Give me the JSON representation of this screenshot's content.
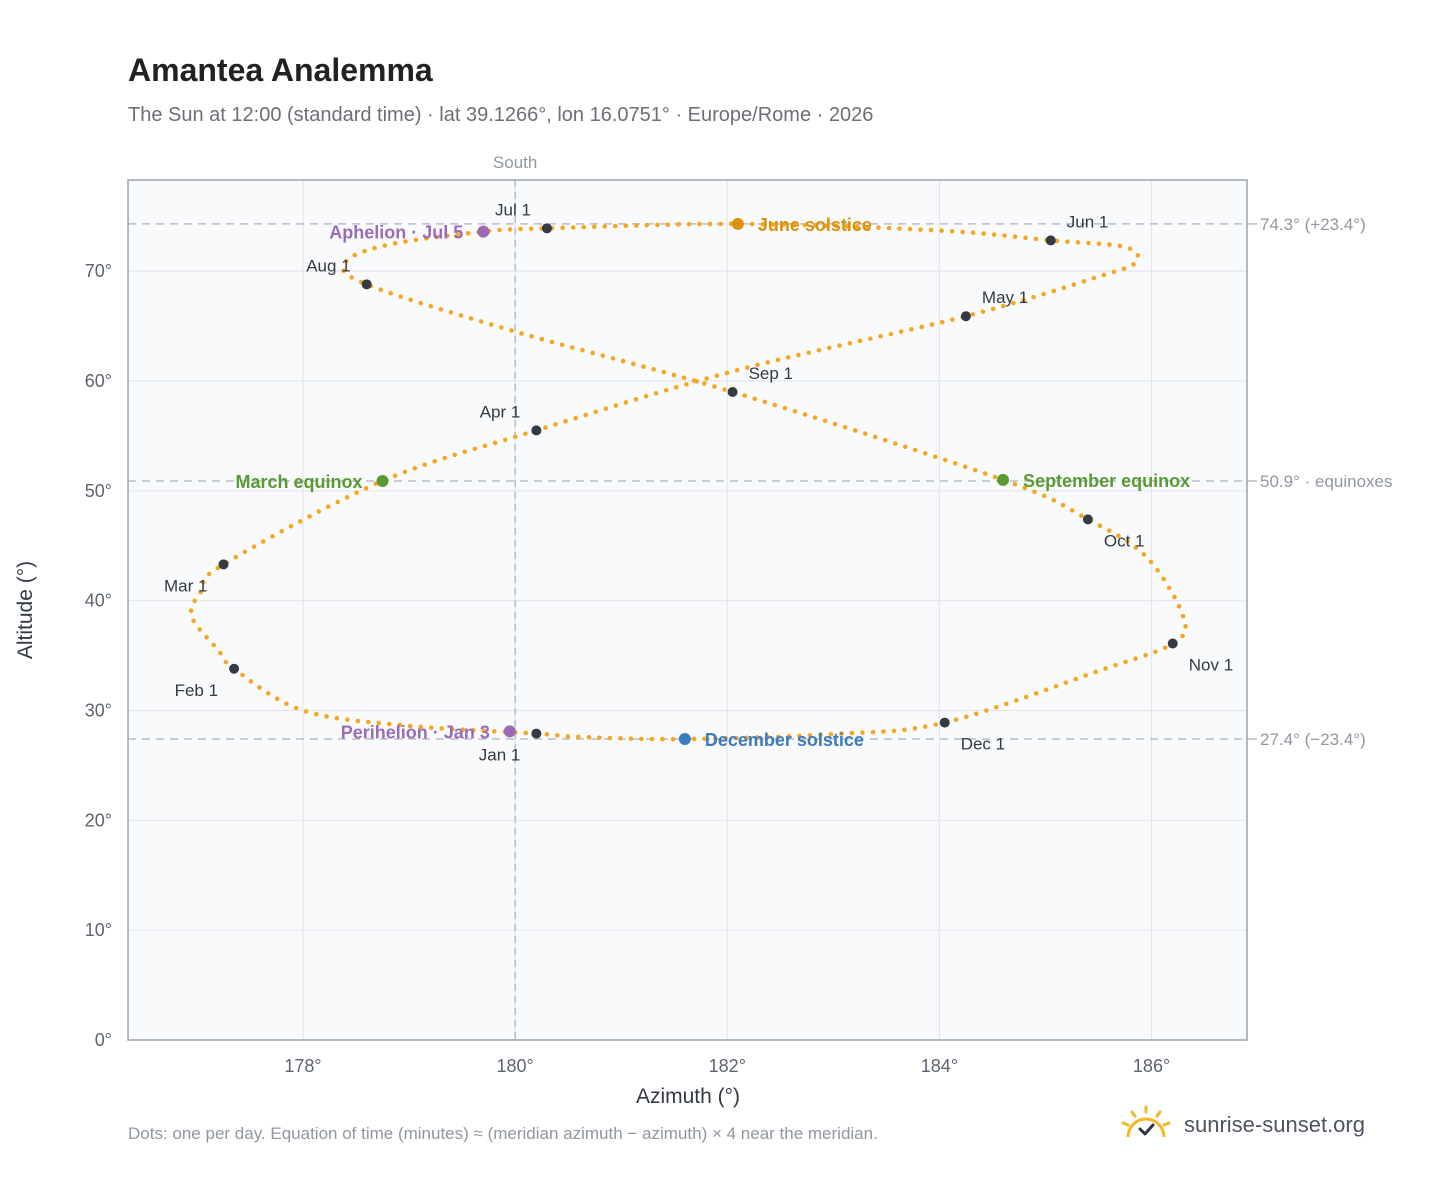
{
  "title": "Amantea Analemma",
  "subtitle": "The Sun at 12:00 (standard time) · lat 39.1266°, lon 16.0751° · Europe/Rome · 2026",
  "footnote": "Dots: one per day. Equation of time (minutes) ≈ (meridian azimuth − azimuth) × 4 near the meridian.",
  "brand": {
    "name": "sunrise-sunset.org",
    "icon": "sun-logo-icon"
  },
  "colors": {
    "path": "#f5a623",
    "month": "#353b45",
    "june": "#d9920c",
    "december": "#3d7bbf",
    "equinox": "#5a9a32",
    "apsis": "#9b6bb8",
    "grid": "#e3e7ec",
    "ref": "#b8bfc8",
    "frame": "#9aa3ae",
    "plot_bg": "#f9fafc"
  },
  "chart_data": {
    "type": "scatter",
    "xlabel": "Azimuth (°)",
    "ylabel": "Altitude (°)",
    "xlim": [
      176.35,
      186.9
    ],
    "ylim": [
      0,
      78.3
    ],
    "x_ticks": [
      178,
      180,
      182,
      184,
      186
    ],
    "x_tick_labels": [
      "178°",
      "180°",
      "182°",
      "184°",
      "186°"
    ],
    "y_ticks": [
      0,
      10,
      20,
      30,
      40,
      50,
      60,
      70
    ],
    "y_tick_labels": [
      "0°",
      "10°",
      "20°",
      "30°",
      "40°",
      "50°",
      "60°",
      "70°"
    ],
    "grid": true,
    "meridian": {
      "azimuth": 180,
      "label": "South"
    },
    "reference_lines": [
      {
        "altitude": 74.3,
        "label": "74.3° (+23.4°)"
      },
      {
        "altitude": 50.9,
        "label": "50.9° · equinoxes"
      },
      {
        "altitude": 27.4,
        "label": "27.4° (−23.4°)"
      }
    ],
    "daily_path": [
      [
        180.2,
        27.9
      ],
      [
        179.0,
        28.6
      ],
      [
        178.0,
        30.0
      ],
      [
        177.35,
        33.8
      ],
      [
        177.2,
        35.5
      ],
      [
        176.95,
        38.6
      ],
      [
        177.05,
        41.0
      ],
      [
        177.25,
        43.3
      ],
      [
        178.75,
        50.9
      ],
      [
        180.2,
        55.5
      ],
      [
        182.1,
        61.0
      ],
      [
        184.25,
        65.9
      ],
      [
        185.5,
        69.5
      ],
      [
        185.85,
        70.8
      ],
      [
        185.75,
        72.2
      ],
      [
        185.05,
        72.8
      ],
      [
        184.0,
        73.7
      ],
      [
        182.1,
        74.3
      ],
      [
        180.3,
        73.9
      ],
      [
        179.7,
        73.6
      ],
      [
        178.8,
        72.4
      ],
      [
        178.4,
        70.8
      ],
      [
        178.6,
        68.8
      ],
      [
        180.0,
        64.5
      ],
      [
        182.05,
        59.0
      ],
      [
        184.6,
        51.0
      ],
      [
        185.4,
        47.4
      ],
      [
        185.95,
        44.0
      ],
      [
        186.3,
        38.5
      ],
      [
        186.2,
        36.1
      ],
      [
        185.5,
        33.6
      ],
      [
        184.05,
        28.9
      ],
      [
        183.0,
        27.85
      ],
      [
        181.6,
        27.4
      ],
      [
        180.6,
        27.6
      ],
      [
        180.2,
        27.9
      ]
    ],
    "month_markers": [
      {
        "label": "Jan 1",
        "azimuth": 180.2,
        "altitude": 27.9,
        "anchor": "end",
        "pos": "below"
      },
      {
        "label": "Feb 1",
        "azimuth": 177.35,
        "altitude": 33.8,
        "anchor": "end",
        "pos": "below"
      },
      {
        "label": "Mar 1",
        "azimuth": 177.25,
        "altitude": 43.3,
        "anchor": "end",
        "pos": "below"
      },
      {
        "label": "Apr 1",
        "azimuth": 180.2,
        "altitude": 55.5,
        "anchor": "end",
        "pos": "above"
      },
      {
        "label": "May 1",
        "azimuth": 184.25,
        "altitude": 65.9,
        "anchor": "start",
        "pos": "above"
      },
      {
        "label": "Jun 1",
        "azimuth": 185.05,
        "altitude": 72.8,
        "anchor": "start",
        "pos": "above"
      },
      {
        "label": "Jul 1",
        "azimuth": 180.3,
        "altitude": 73.9,
        "anchor": "end",
        "pos": "above"
      },
      {
        "label": "Aug 1",
        "azimuth": 178.6,
        "altitude": 68.8,
        "anchor": "end",
        "pos": "above"
      },
      {
        "label": "Sep 1",
        "azimuth": 182.05,
        "altitude": 59.0,
        "anchor": "start",
        "pos": "above"
      },
      {
        "label": "Oct 1",
        "azimuth": 185.4,
        "altitude": 47.4,
        "anchor": "start",
        "pos": "below"
      },
      {
        "label": "Nov 1",
        "azimuth": 186.2,
        "altitude": 36.1,
        "anchor": "start",
        "pos": "below"
      },
      {
        "label": "Dec 1",
        "azimuth": 184.05,
        "altitude": 28.9,
        "anchor": "start",
        "pos": "below"
      }
    ],
    "events": [
      {
        "label": "June solstice",
        "azimuth": 182.1,
        "altitude": 74.3,
        "color_key": "june",
        "anchor": "start"
      },
      {
        "label": "December solstice",
        "azimuth": 181.6,
        "altitude": 27.4,
        "color_key": "december",
        "anchor": "start"
      },
      {
        "label": "March equinox",
        "azimuth": 178.75,
        "altitude": 50.9,
        "color_key": "equinox",
        "anchor": "end"
      },
      {
        "label": "September equinox",
        "azimuth": 184.6,
        "altitude": 51.0,
        "color_key": "equinox",
        "anchor": "start"
      },
      {
        "label": "Aphelion · Jul 5",
        "azimuth": 179.7,
        "altitude": 73.6,
        "color_key": "apsis",
        "anchor": "end"
      },
      {
        "label": "Perihelion · Jan 3",
        "azimuth": 179.95,
        "altitude": 28.1,
        "color_key": "apsis",
        "anchor": "end"
      }
    ]
  }
}
